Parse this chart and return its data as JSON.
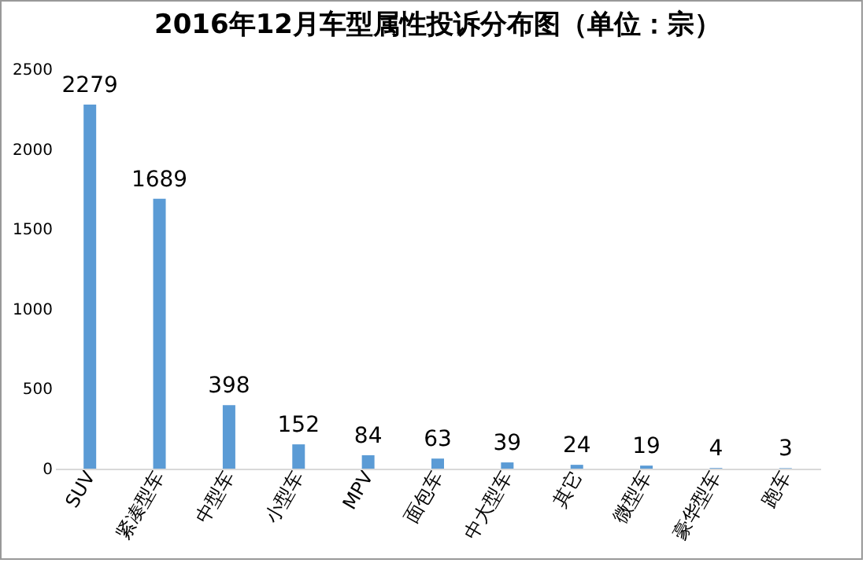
{
  "chart_data": {
    "type": "bar",
    "title": "2016年12月车型属性投诉分布图（单位：宗）",
    "categories": [
      "SUV",
      "紧凑型车",
      "中型车",
      "小型车",
      "MPV",
      "面包车",
      "中大型车",
      "其它",
      "微型车",
      "豪华型车",
      "跑车"
    ],
    "values": [
      2279,
      1689,
      398,
      152,
      84,
      63,
      39,
      24,
      19,
      4,
      3
    ],
    "color": "#5b9bd5",
    "ylim": [
      0,
      2500
    ],
    "yticks": [
      0,
      500,
      1000,
      1500,
      2000,
      2500
    ],
    "grid": false,
    "data_labels": true
  }
}
